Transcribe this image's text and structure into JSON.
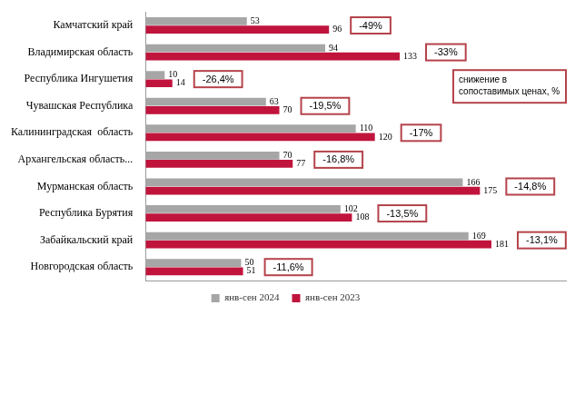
{
  "chart_data": {
    "type": "bar",
    "orientation": "horizontal",
    "categories": [
      "Камчатский край",
      "Владимирская область",
      "Республика Ингушетия",
      "Чувашская Республика",
      "Калининградская  область",
      "Архангельская область...",
      "Мурманская область",
      "Республика Бурятия",
      "Забайкальский край",
      "Новгородская область"
    ],
    "series": [
      {
        "name": "янв-сен 2024",
        "color": "#a6a6a6",
        "values": [
          53,
          94,
          10,
          63,
          110,
          70,
          166,
          102,
          169,
          50
        ]
      },
      {
        "name": "янв-сен 2023",
        "color": "#c0143c",
        "values": [
          96,
          133,
          14,
          70,
          120,
          77,
          175,
          108,
          181,
          51
        ]
      }
    ],
    "xlim": [
      0,
      220
    ],
    "grid": false,
    "tick_labels": "y",
    "legend": "bottom",
    "data_labels": true,
    "annotations": [
      "-49%",
      "-33%",
      "-26,4%",
      "-19,5%",
      "-17%",
      "-16,8%",
      "-14,8%",
      "-13,5%",
      "-13,1%",
      "-11,6%"
    ],
    "note": "снижение в сопоставимых ценах, %"
  }
}
